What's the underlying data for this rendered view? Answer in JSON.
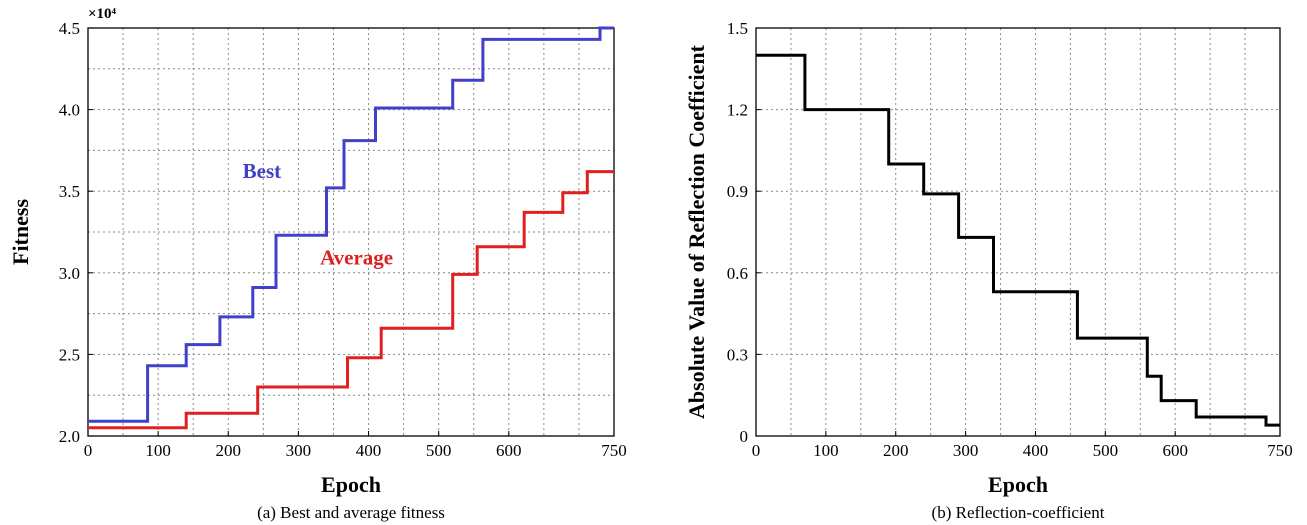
{
  "chart_data": [
    {
      "type": "line",
      "step": true,
      "caption": "(a) Best and average fitness",
      "xlabel": "Epoch",
      "ylabel": "Fitness",
      "exponent_label": "×10⁴",
      "xlim": [
        0,
        750
      ],
      "ylim": [
        2.0,
        4.5
      ],
      "xticks": [
        "0",
        "100",
        "200",
        "300",
        "400",
        "500",
        "600",
        "750"
      ],
      "xtick_values": [
        0,
        100,
        200,
        300,
        400,
        500,
        600,
        750
      ],
      "yticks": [
        "2.0",
        "2.5",
        "3.0",
        "3.5",
        "4.0",
        "4.5"
      ],
      "ytick_values": [
        2.0,
        2.5,
        3.0,
        3.5,
        4.0,
        4.5
      ],
      "grid": true,
      "series": [
        {
          "name": "Best",
          "color": "#4040c8",
          "label_at": [
            248,
            3.58
          ],
          "x": [
            0,
            85,
            85,
            140,
            140,
            188,
            188,
            235,
            235,
            268,
            268,
            340,
            340,
            365,
            365,
            410,
            410,
            520,
            520,
            563,
            563,
            730,
            730,
            750
          ],
          "y": [
            2.09,
            2.09,
            2.43,
            2.43,
            2.56,
            2.56,
            2.73,
            2.73,
            2.91,
            2.91,
            3.23,
            3.23,
            3.52,
            3.52,
            3.81,
            3.81,
            4.01,
            4.01,
            4.18,
            4.18,
            4.43,
            4.43,
            4.5,
            4.5
          ]
        },
        {
          "name": "Average",
          "color": "#e02020",
          "label_at": [
            383,
            3.05
          ],
          "x": [
            0,
            140,
            140,
            242,
            242,
            370,
            370,
            418,
            418,
            520,
            520,
            555,
            555,
            622,
            622,
            677,
            677,
            712,
            712,
            750
          ],
          "y": [
            2.05,
            2.05,
            2.14,
            2.14,
            2.3,
            2.3,
            2.48,
            2.48,
            2.66,
            2.66,
            2.99,
            2.99,
            3.16,
            3.16,
            3.37,
            3.37,
            3.49,
            3.49,
            3.62,
            3.62
          ]
        }
      ]
    },
    {
      "type": "line",
      "step": true,
      "caption": "(b) Reflection-coefficient",
      "xlabel": "Epoch",
      "ylabel": "Absolute Value of Reflection Coefficient",
      "xlim": [
        0,
        750
      ],
      "ylim": [
        0,
        1.5
      ],
      "xticks": [
        "0",
        "100",
        "200",
        "300",
        "400",
        "500",
        "600",
        "750"
      ],
      "xtick_values": [
        0,
        100,
        200,
        300,
        400,
        500,
        600,
        750
      ],
      "yticks": [
        "0",
        "0.3",
        "0.6",
        "0.9",
        "1.2",
        "1.5"
      ],
      "ytick_values": [
        0,
        0.3,
        0.6,
        0.9,
        1.2,
        1.5
      ],
      "grid": true,
      "series": [
        {
          "color": "#000000",
          "x": [
            0,
            70,
            70,
            190,
            190,
            240,
            240,
            290,
            290,
            340,
            340,
            460,
            460,
            560,
            560,
            580,
            580,
            630,
            630,
            730,
            730,
            750
          ],
          "y": [
            1.4,
            1.4,
            1.2,
            1.2,
            1.0,
            1.0,
            0.89,
            0.89,
            0.73,
            0.73,
            0.53,
            0.53,
            0.36,
            0.36,
            0.22,
            0.22,
            0.13,
            0.13,
            0.07,
            0.07,
            0.04,
            0.04
          ]
        }
      ]
    }
  ]
}
